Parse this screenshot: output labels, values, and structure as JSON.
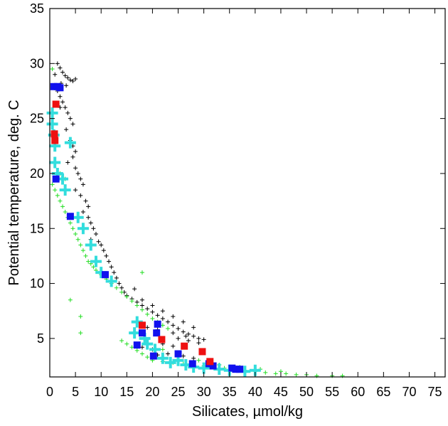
{
  "chart_data": {
    "type": "scatter",
    "xlabel": "Silicates, µmol/kg",
    "ylabel": "Potential temperature, deg. C",
    "xlim": [
      0,
      77
    ],
    "ylim": [
      1.5,
      35
    ],
    "x_ticks": [
      0,
      5,
      10,
      15,
      20,
      25,
      30,
      35,
      40,
      45,
      50,
      55,
      60,
      65,
      70,
      75
    ],
    "y_ticks": [
      5,
      10,
      15,
      20,
      25,
      30,
      35
    ],
    "grid": false,
    "legend": "none",
    "series": [
      {
        "marker": "small-plus",
        "color": "#000000",
        "points": [
          [
            1.5,
            30.0
          ],
          [
            2.0,
            29.6
          ],
          [
            2.5,
            29.2
          ],
          [
            3.0,
            28.9
          ],
          [
            3.5,
            28.7
          ],
          [
            4.0,
            28.5
          ],
          [
            4.5,
            28.4
          ],
          [
            5.0,
            28.6
          ],
          [
            2.2,
            28.2
          ],
          [
            3.2,
            28.0
          ],
          [
            1.0,
            29.0
          ],
          [
            1.5,
            27.5
          ],
          [
            2.0,
            27.0
          ],
          [
            2.5,
            26.5
          ],
          [
            3.0,
            26.0
          ],
          [
            3.5,
            25.5
          ],
          [
            4.0,
            25.0
          ],
          [
            4.5,
            24.5
          ],
          [
            2.0,
            26.0
          ],
          [
            3.2,
            24.0
          ],
          [
            4.0,
            23.0
          ],
          [
            4.5,
            22.5
          ],
          [
            5.0,
            22.0
          ],
          [
            3.5,
            21.0
          ],
          [
            4.5,
            21.5
          ],
          [
            5.0,
            20.5
          ],
          [
            5.5,
            20.0
          ],
          [
            6.0,
            19.5
          ],
          [
            6.5,
            19.0
          ],
          [
            5.0,
            18.5
          ],
          [
            6.0,
            18.0
          ],
          [
            7.0,
            17.5
          ],
          [
            7.5,
            17.0
          ],
          [
            6.5,
            16.5
          ],
          [
            7.5,
            16.0
          ],
          [
            8.0,
            15.5
          ],
          [
            8.5,
            15.0
          ],
          [
            9.0,
            14.5
          ],
          [
            8.0,
            14.0
          ],
          [
            9.5,
            13.8
          ],
          [
            10.0,
            13.5
          ],
          [
            10.5,
            13.0
          ],
          [
            11.0,
            12.5
          ],
          [
            11.5,
            12.0
          ],
          [
            12.0,
            11.5
          ],
          [
            12.5,
            11.0
          ],
          [
            13.0,
            10.5
          ],
          [
            13.5,
            10.0
          ],
          [
            14.0,
            9.6
          ],
          [
            14.5,
            9.2
          ],
          [
            15.0,
            8.9
          ],
          [
            16.0,
            8.6
          ],
          [
            17.0,
            8.3
          ],
          [
            18.0,
            8.0
          ],
          [
            19.0,
            7.7
          ],
          [
            20.0,
            7.4
          ],
          [
            21.0,
            7.1
          ],
          [
            22.0,
            6.8
          ],
          [
            23.0,
            6.5
          ],
          [
            24.0,
            6.2
          ],
          [
            25.0,
            5.9
          ],
          [
            26.0,
            5.6
          ],
          [
            27.0,
            5.4
          ],
          [
            28.0,
            5.2
          ],
          [
            29.0,
            5.0
          ],
          [
            30.0,
            4.9
          ],
          [
            16.5,
            9.5
          ],
          [
            18.0,
            8.5
          ],
          [
            20.0,
            8.0
          ],
          [
            22.0,
            7.5
          ],
          [
            24.0,
            7.0
          ],
          [
            26.0,
            6.5
          ],
          [
            28.0,
            6.0
          ],
          [
            25.0,
            5.0
          ],
          [
            27.0,
            4.8
          ],
          [
            29.0,
            4.6
          ],
          [
            22.0,
            4.5
          ],
          [
            24.0,
            4.3
          ],
          [
            18.0,
            4.2
          ],
          [
            20.0,
            4.0
          ],
          [
            23.0,
            3.6
          ],
          [
            26.0,
            3.4
          ],
          [
            28.0,
            3.2
          ],
          [
            21.0,
            3.5
          ],
          [
            24.0,
            5.5
          ],
          [
            26.5,
            5.2
          ],
          [
            19.0,
            6.0
          ],
          [
            21.0,
            5.8
          ]
        ]
      },
      {
        "marker": "small-plus",
        "color": "#22dd22",
        "points": [
          [
            0.5,
            19.0
          ],
          [
            1.0,
            18.5
          ],
          [
            1.5,
            18.0
          ],
          [
            2.0,
            17.5
          ],
          [
            2.5,
            17.0
          ],
          [
            3.0,
            16.5
          ],
          [
            3.5,
            16.0
          ],
          [
            4.0,
            15.5
          ],
          [
            4.5,
            15.0
          ],
          [
            5.0,
            14.5
          ],
          [
            5.5,
            14.0
          ],
          [
            6.0,
            13.5
          ],
          [
            6.5,
            13.0
          ],
          [
            7.0,
            12.5
          ],
          [
            7.5,
            12.0
          ],
          [
            8.0,
            11.8
          ],
          [
            8.5,
            11.5
          ],
          [
            9.0,
            11.2
          ],
          [
            10.0,
            10.8
          ],
          [
            11.0,
            10.4
          ],
          [
            12.0,
            10.0
          ],
          [
            13.0,
            9.6
          ],
          [
            14.0,
            9.2
          ],
          [
            15.0,
            8.8
          ],
          [
            16.0,
            8.4
          ],
          [
            17.0,
            8.0
          ],
          [
            18.0,
            7.6
          ],
          [
            19.0,
            7.2
          ],
          [
            20.0,
            6.8
          ],
          [
            21.0,
            6.5
          ],
          [
            22.0,
            6.2
          ],
          [
            23.0,
            5.9
          ],
          [
            14.0,
            4.8
          ],
          [
            15.0,
            4.5
          ],
          [
            16.0,
            4.2
          ],
          [
            17.0,
            3.9
          ],
          [
            18.0,
            3.6
          ],
          [
            19.0,
            3.3
          ],
          [
            20.0,
            3.0
          ],
          [
            22.0,
            2.9
          ],
          [
            24.0,
            2.8
          ],
          [
            26.0,
            2.7
          ],
          [
            28.0,
            2.6
          ],
          [
            30.0,
            2.5
          ],
          [
            32.0,
            2.4
          ],
          [
            34.0,
            2.3
          ],
          [
            36.0,
            2.2
          ],
          [
            38.0,
            2.1
          ],
          [
            40.0,
            2.0
          ],
          [
            42.0,
            1.9
          ],
          [
            44.0,
            1.8
          ],
          [
            46.0,
            1.8
          ],
          [
            48.0,
            1.7
          ],
          [
            50.0,
            1.7
          ],
          [
            52.0,
            1.6
          ],
          [
            55.0,
            1.6
          ],
          [
            57.0,
            1.6
          ],
          [
            4.0,
            8.5
          ],
          [
            6.0,
            7.0
          ],
          [
            6.0,
            5.5
          ],
          [
            18.0,
            11.0
          ],
          [
            22.0,
            4.0
          ],
          [
            25.0,
            3.5
          ],
          [
            29.0,
            3.0
          ],
          [
            33.0,
            2.6
          ],
          [
            37.0,
            2.4
          ],
          [
            41.0,
            2.2
          ],
          [
            45.0,
            2.0
          ],
          [
            1.0,
            21.0
          ],
          [
            2.0,
            20.0
          ],
          [
            3.0,
            19.5
          ],
          [
            0.5,
            29.5
          ]
        ]
      },
      {
        "marker": "large-plus",
        "color": "#33dddd",
        "points": [
          [
            0.5,
            25.5
          ],
          [
            0.5,
            24.5
          ],
          [
            0.8,
            23.5
          ],
          [
            1.0,
            22.5
          ],
          [
            1.0,
            21.0
          ],
          [
            1.5,
            20.0
          ],
          [
            2.5,
            19.5
          ],
          [
            3.0,
            18.5
          ],
          [
            4.0,
            22.8
          ],
          [
            5.5,
            16.0
          ],
          [
            6.5,
            15.0
          ],
          [
            8.0,
            13.5
          ],
          [
            9.0,
            12.0
          ],
          [
            10.0,
            11.0
          ],
          [
            12.0,
            10.2
          ],
          [
            16.5,
            5.5
          ],
          [
            17.0,
            6.5
          ],
          [
            18.5,
            5.0
          ],
          [
            19.0,
            4.5
          ],
          [
            20.5,
            4.0
          ],
          [
            22.0,
            3.2
          ],
          [
            23.5,
            2.8
          ],
          [
            25.0,
            3.0
          ],
          [
            26.5,
            2.6
          ],
          [
            28.0,
            2.4
          ],
          [
            30.0,
            2.3
          ],
          [
            33.0,
            2.2
          ],
          [
            35.0,
            2.1
          ],
          [
            38.0,
            2.0
          ],
          [
            40.0,
            2.1
          ]
        ]
      },
      {
        "marker": "square",
        "color": "#1111ee",
        "points": [
          [
            0.8,
            27.9
          ],
          [
            1.5,
            27.9
          ],
          [
            2.0,
            27.8
          ],
          [
            1.2,
            19.5
          ],
          [
            4.0,
            16.1
          ],
          [
            10.8,
            10.8
          ],
          [
            17.0,
            4.4
          ],
          [
            18.0,
            5.5
          ],
          [
            20.2,
            3.4
          ],
          [
            20.8,
            5.5
          ],
          [
            21.0,
            6.3
          ],
          [
            25.0,
            3.6
          ],
          [
            27.8,
            2.7
          ],
          [
            31.0,
            2.7
          ],
          [
            31.8,
            2.5
          ],
          [
            35.5,
            2.3
          ],
          [
            36.2,
            2.2
          ],
          [
            37.0,
            2.2
          ]
        ]
      },
      {
        "marker": "square",
        "color": "#ee1111",
        "points": [
          [
            1.2,
            26.3
          ],
          [
            0.9,
            23.6
          ],
          [
            1.0,
            23.0
          ],
          [
            18.0,
            6.2
          ],
          [
            21.8,
            4.9
          ],
          [
            26.2,
            4.3
          ],
          [
            29.7,
            3.8
          ],
          [
            31.2,
            2.9
          ]
        ]
      }
    ]
  }
}
